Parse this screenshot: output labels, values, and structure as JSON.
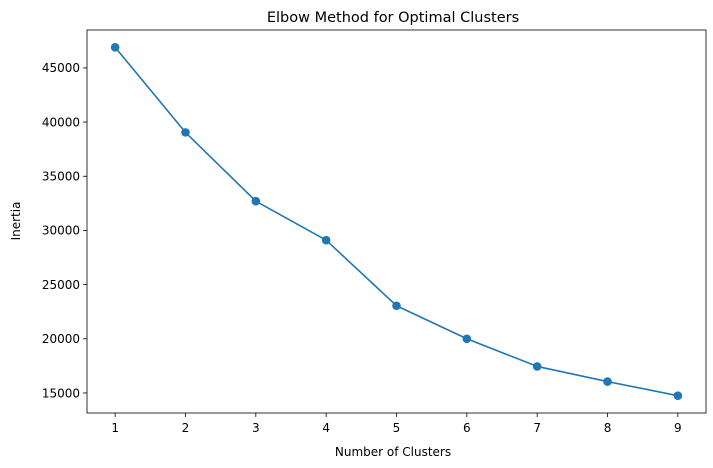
{
  "chart_data": {
    "type": "line",
    "title": "Elbow Method for Optimal Clusters",
    "xlabel": "Number of Clusters",
    "ylabel": "Inertia",
    "x": [
      1,
      2,
      3,
      4,
      5,
      6,
      7,
      8,
      9
    ],
    "series": [
      {
        "values": [
          46900,
          39050,
          32700,
          29100,
          23050,
          20000,
          17450,
          16050,
          14750
        ],
        "color": "#1f77b4",
        "marker": "circle"
      }
    ],
    "xlim": [
      0.6,
      9.4
    ],
    "ylim": [
      13150,
      48500
    ],
    "xticks": [
      1,
      2,
      3,
      4,
      5,
      6,
      7,
      8,
      9
    ],
    "yticks": [
      15000,
      20000,
      25000,
      30000,
      35000,
      40000,
      45000
    ],
    "grid": false,
    "legend": "none"
  }
}
